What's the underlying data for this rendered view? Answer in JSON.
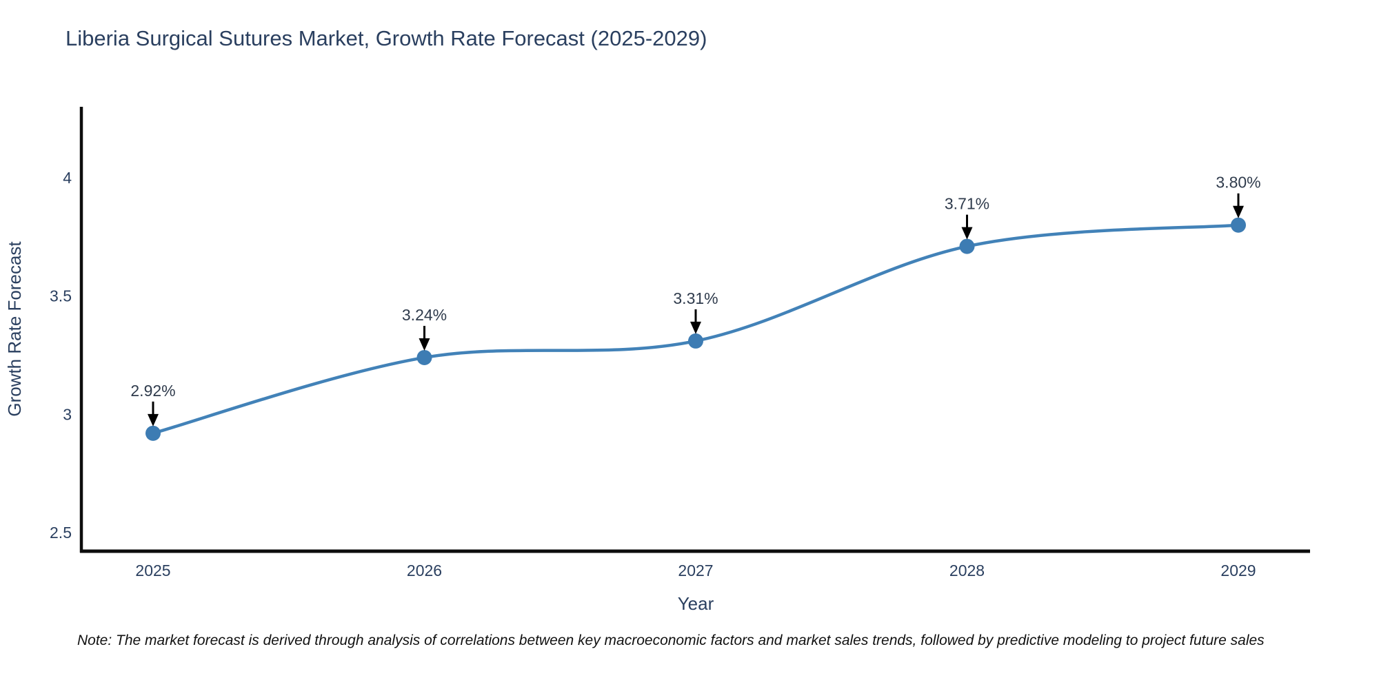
{
  "title": "Liberia Surgical Sutures Market, Growth Rate Forecast (2025-2029)",
  "note": "Note: The market forecast is derived through analysis of correlations between key macroeconomic factors and market sales trends, followed by predictive modeling to project future sales",
  "chart_data": {
    "type": "line",
    "title": "Liberia Surgical Sutures Market, Growth Rate Forecast (2025-2029)",
    "xlabel": "Year",
    "ylabel": "Growth Rate Forecast",
    "categories": [
      "2025",
      "2026",
      "2027",
      "2028",
      "2029"
    ],
    "values": [
      2.92,
      3.24,
      3.31,
      3.71,
      3.8
    ],
    "point_labels": [
      "2.92%",
      "3.24%",
      "3.31%",
      "3.71%",
      "3.80%"
    ],
    "yticks": [
      2.5,
      3,
      3.5,
      4
    ],
    "ytick_labels": [
      "2.5",
      "3",
      "3.5",
      "4"
    ],
    "ylim": [
      2.4214,
      4.3001
    ],
    "line_shape": "spline",
    "grid": false,
    "legend": false,
    "colors": {
      "line": "#4282b8",
      "marker": "#3d7cb3",
      "axis": "#0d0d0d",
      "text": "#2a3f5f",
      "annotation_text": "#2f3b4c",
      "arrow": "#000000",
      "background": "#ffffff"
    }
  }
}
